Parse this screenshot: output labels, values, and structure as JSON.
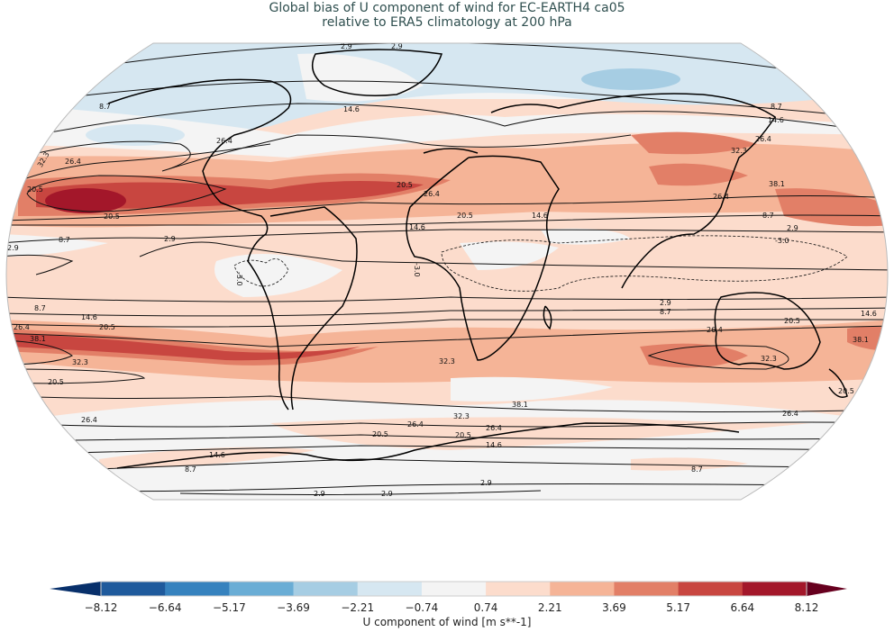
{
  "title": {
    "line1": "Global bias of U component of wind for EC-EARTH4 ca05",
    "line2": "relative to ERA5 climatology at 200 hPa"
  },
  "colorbar": {
    "label": "U component of wind [m s**-1]",
    "ticks": [
      "−8.12",
      "−6.64",
      "−5.17",
      "−3.69",
      "−2.21",
      "−0.74",
      "0.74",
      "2.21",
      "3.69",
      "5.17",
      "6.64",
      "8.12"
    ],
    "colors": [
      "#08306b",
      "#1f5a9c",
      "#3682be",
      "#6aadd5",
      "#a6cde3",
      "#d6e7f1",
      "#f4f4f4",
      "#fcdccc",
      "#f5b497",
      "#e27f67",
      "#c84640",
      "#a3172a",
      "#67001f"
    ],
    "extend": "both"
  },
  "chart_data": {
    "type": "heatmap",
    "title": "Global bias of U component of wind for EC-EARTH4 ca05 relative to ERA5 climatology at 200 hPa",
    "projection": "Robinson (global)",
    "fill_variable": "U-wind bias (model minus ERA5)",
    "fill_units": "m s**-1",
    "fill_levels": [
      -8.12,
      -6.64,
      -5.17,
      -3.69,
      -2.21,
      -0.74,
      0.74,
      2.21,
      3.69,
      5.17,
      6.64,
      8.12
    ],
    "contour_variable": "ERA5 climatological U wind at 200 hPa",
    "contour_levels": [
      -3.0,
      2.9,
      8.7,
      14.6,
      20.5,
      26.4,
      32.3,
      38.1
    ],
    "negative_contours_style": "dashed",
    "contour_labels_visible": [
      "2.9",
      "8.7",
      "14.6",
      "20.5",
      "26.4",
      "32.3",
      "38.1",
      "-3.0"
    ],
    "features": [
      {
        "region": "Central North Pacific (near Hawaii, ~20N)",
        "bias_range": "6.64 to 8.12",
        "note": "strongest positive bias"
      },
      {
        "region": "Subtropical North Atlantic / Gulf of Mexico jet",
        "bias_range": "5.17 to 6.64"
      },
      {
        "region": "South Pacific / South American subtropical jet (~30S)",
        "bias_range": "5.17 to 6.64"
      },
      {
        "region": "East Asia / Japan jet",
        "bias_range": "3.69 to 5.17"
      },
      {
        "region": "South of Australia (~35S)",
        "bias_range": "3.69 to 5.17"
      },
      {
        "region": "Arctic / Northern Siberia",
        "bias_range": "-3.69 to -2.21",
        "note": "weak negative bias"
      },
      {
        "region": "North Atlantic / Canada",
        "bias_range": "-2.21 to -0.74"
      },
      {
        "region": "Antarctica / Southern Ocean high latitudes",
        "bias_range": "-0.74 to 0.74"
      }
    ]
  }
}
